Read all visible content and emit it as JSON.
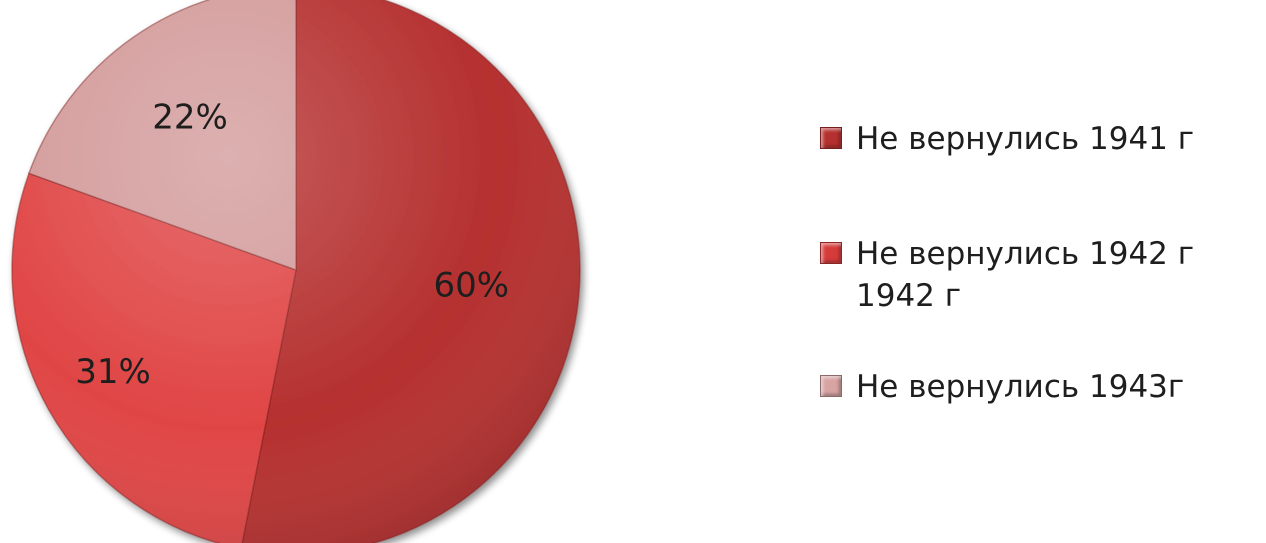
{
  "chart_data": {
    "type": "pie",
    "title": "",
    "categories": [
      "Не вернулись 1941 г",
      "Не вернулись 1942 г",
      "Не вернулись 1943г"
    ],
    "values": [
      60,
      31,
      22
    ],
    "data_labels": [
      "60%",
      "31%",
      "22%"
    ],
    "colors": [
      "#b5302f",
      "#e04545",
      "#d39a9a"
    ],
    "legend": {
      "position": "right",
      "items": [
        {
          "lines": [
            "Не вернулись 1941 г"
          ],
          "color": "#b5302f"
        },
        {
          "lines": [
            "Не вернулись 1942 г",
            "1942 г"
          ],
          "color": "#d63b3b"
        },
        {
          "lines": [
            "Не вернулись 1943г"
          ],
          "color": "#d7a3a3"
        }
      ]
    }
  }
}
